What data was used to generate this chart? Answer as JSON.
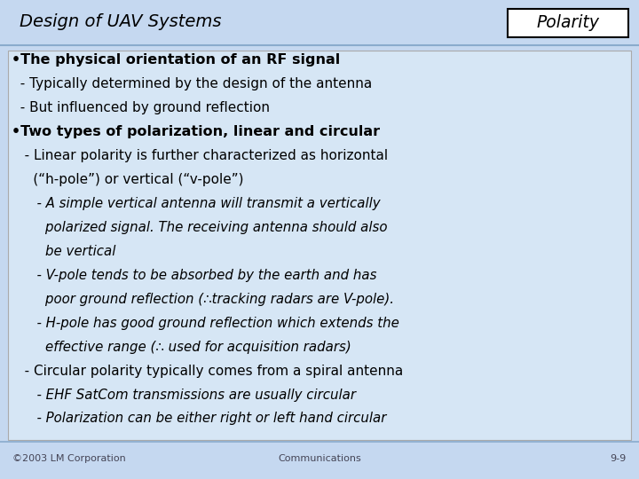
{
  "bg_color": "#c5d8f0",
  "title_text": "Design of UAV Systems",
  "title_color": "#000000",
  "badge_text": "Polarity",
  "badge_bg": "#ffffff",
  "badge_border": "#000000",
  "content_bg": "#d6e6f5",
  "content_border": "#aaaaaa",
  "footer_left": "©2003 LM Corporation",
  "footer_center": "Communications",
  "footer_right": "9-9",
  "footer_color": "#444455",
  "separator_color": "#8aabcc",
  "lines": [
    {
      "text": "•The physical orientation of an RF signal",
      "bold": true,
      "italic": false,
      "size": 11.5,
      "indent": 0.018
    },
    {
      "text": "  - Typically determined by the design of the antenna",
      "bold": false,
      "italic": false,
      "size": 11.0,
      "indent": 0.018
    },
    {
      "text": "  - But influenced by ground reflection",
      "bold": false,
      "italic": false,
      "size": 11.0,
      "indent": 0.018
    },
    {
      "text": "•Two types of polarization, linear and circular",
      "bold": true,
      "italic": false,
      "size": 11.5,
      "indent": 0.018
    },
    {
      "text": "   - Linear polarity is further characterized as horizontal",
      "bold": false,
      "italic": false,
      "size": 11.0,
      "indent": 0.018
    },
    {
      "text": "     (“h-pole”) or vertical (“v-pole”)",
      "bold": false,
      "italic": false,
      "size": 11.0,
      "indent": 0.018
    },
    {
      "text": "      - A simple vertical antenna will transmit a vertically",
      "bold": false,
      "italic": true,
      "size": 10.8,
      "indent": 0.018
    },
    {
      "text": "        polarized signal. The receiving antenna should also",
      "bold": false,
      "italic": true,
      "size": 10.8,
      "indent": 0.018
    },
    {
      "text": "        be vertical",
      "bold": false,
      "italic": true,
      "size": 10.8,
      "indent": 0.018
    },
    {
      "text": "      - V-pole tends to be absorbed by the earth and has",
      "bold": false,
      "italic": true,
      "size": 10.8,
      "indent": 0.018
    },
    {
      "text": "        poor ground reflection (∴tracking radars are V-pole).",
      "bold": false,
      "italic": true,
      "size": 10.8,
      "indent": 0.018
    },
    {
      "text": "      - H-pole has good ground reflection which extends the",
      "bold": false,
      "italic": true,
      "size": 10.8,
      "indent": 0.018
    },
    {
      "text": "        effective range (∴ used for acquisition radars)",
      "bold": false,
      "italic": true,
      "size": 10.8,
      "indent": 0.018
    },
    {
      "text": "   - Circular polarity typically comes from a spiral antenna",
      "bold": false,
      "italic": false,
      "size": 11.0,
      "indent": 0.018
    },
    {
      "text": "      - EHF SatCom transmissions are usually circular",
      "bold": false,
      "italic": true,
      "size": 10.8,
      "indent": 0.018
    },
    {
      "text": "      - Polarization can be either right or left hand circular",
      "bold": false,
      "italic": true,
      "size": 10.8,
      "indent": 0.018
    }
  ]
}
